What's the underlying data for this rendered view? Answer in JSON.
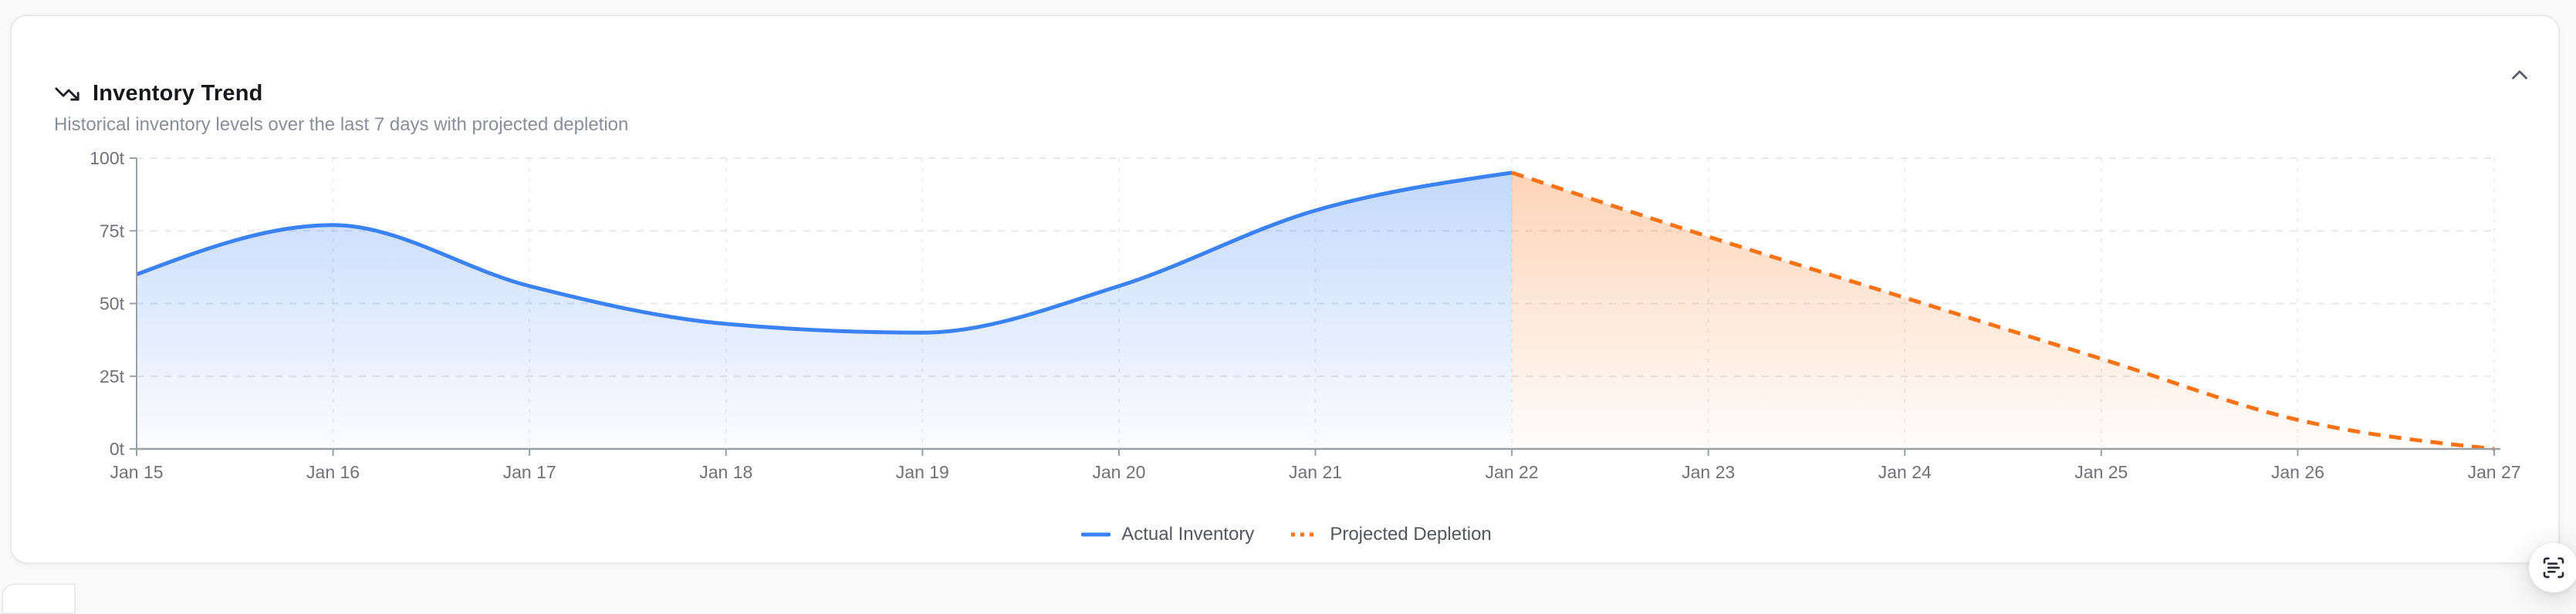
{
  "card": {
    "title": "Inventory Trend",
    "subtitle": "Historical inventory levels over the last 7 days with projected depletion"
  },
  "chart_data": {
    "type": "area",
    "title": "Inventory Trend",
    "categories": [
      "Jan 15",
      "Jan 16",
      "Jan 17",
      "Jan 18",
      "Jan 19",
      "Jan 20",
      "Jan 21",
      "Jan 22",
      "Jan 23",
      "Jan 24",
      "Jan 25",
      "Jan 26",
      "Jan 27"
    ],
    "series": [
      {
        "name": "Actual Inventory",
        "color": "#3b82f6",
        "line_style": "solid",
        "categories": [
          "Jan 15",
          "Jan 16",
          "Jan 17",
          "Jan 18",
          "Jan 19",
          "Jan 20",
          "Jan 21",
          "Jan 22"
        ],
        "values": [
          60,
          77,
          56,
          43,
          40,
          56,
          82,
          95
        ]
      },
      {
        "name": "Projected Depletion",
        "color": "#f97316",
        "line_style": "dashed",
        "categories": [
          "Jan 22",
          "Jan 23",
          "Jan 24",
          "Jan 25",
          "Jan 26",
          "Jan 27"
        ],
        "values": [
          95,
          73,
          52,
          31,
          10,
          0
        ]
      }
    ],
    "y_ticks": [
      {
        "value": 0,
        "label": "0t"
      },
      {
        "value": 25,
        "label": "25t"
      },
      {
        "value": 50,
        "label": "50t"
      },
      {
        "value": 75,
        "label": "75t"
      },
      {
        "value": 100,
        "label": "100t"
      }
    ],
    "ylim": [
      0,
      100
    ],
    "xlabel": "",
    "ylabel": "",
    "grid": true,
    "legend_position": "bottom",
    "colors": {
      "axis": "#9aa0a8",
      "grid_horizontal": "#e6e8ec",
      "grid_vertical": "#edeff3",
      "tick_label": "#71717a"
    }
  }
}
